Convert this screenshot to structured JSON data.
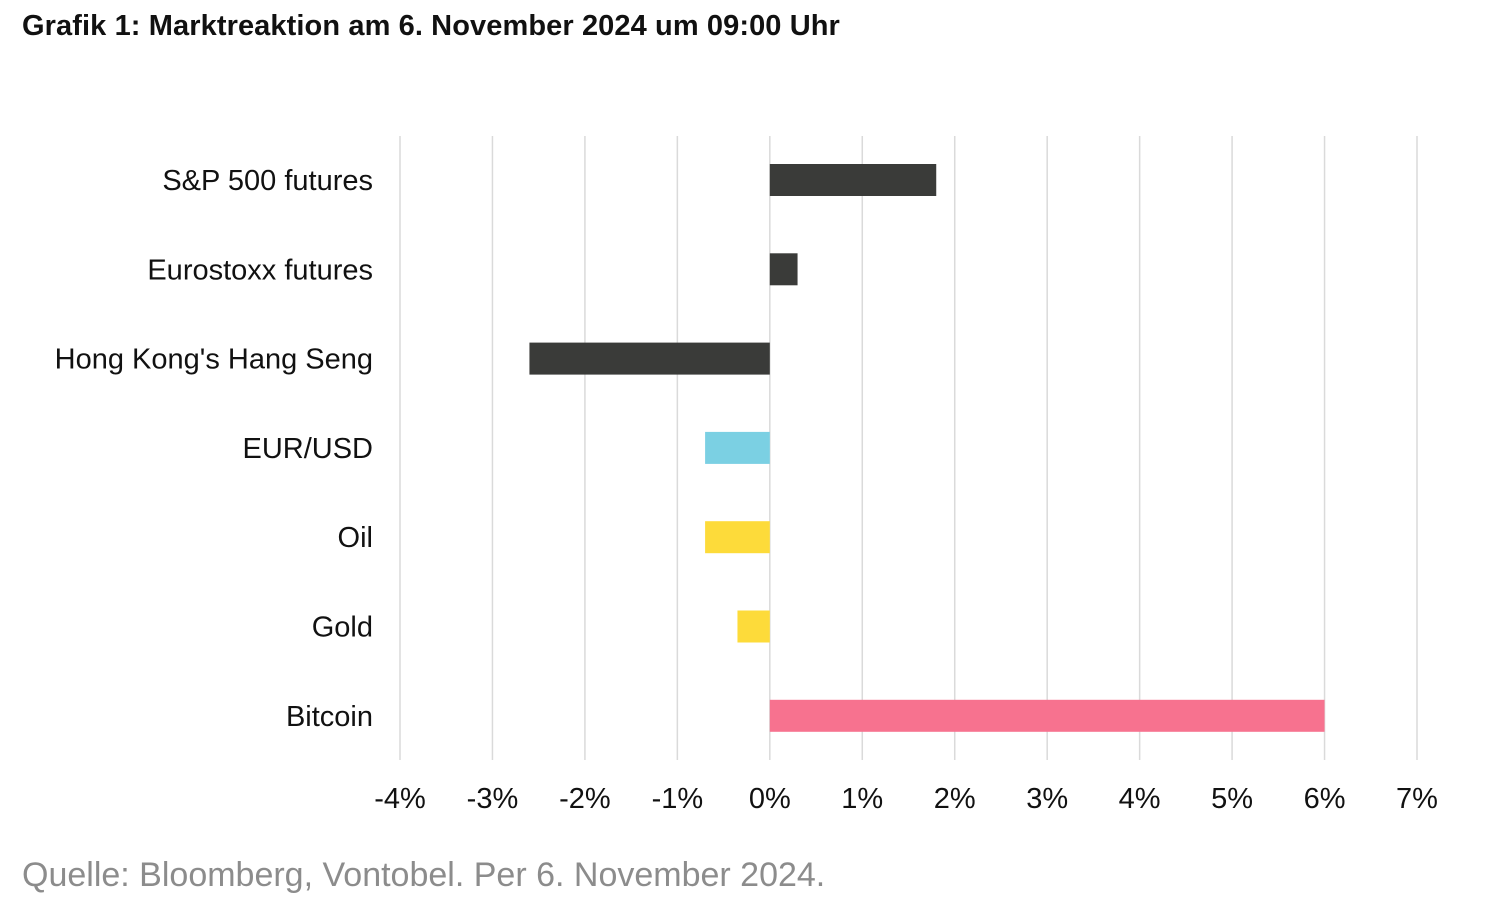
{
  "title": "Grafik 1: Marktreaktion am 6. November 2024 um 09:00 Uhr",
  "source": "Quelle: Bloomberg, Vontobel. Per 6. November 2024.",
  "chart_data": {
    "type": "bar",
    "orientation": "horizontal",
    "title": "",
    "xlabel": "",
    "ylabel": "",
    "categories": [
      "S&P 500 futures",
      "Eurostoxx futures",
      "Hong Kong's Hang Seng",
      "EUR/USD",
      "Oil",
      "Gold",
      "Bitcoin"
    ],
    "values": [
      1.8,
      0.3,
      -2.6,
      -0.7,
      -0.7,
      -0.35,
      6.0
    ],
    "colors": [
      "#3a3b39",
      "#3a3b39",
      "#3a3b39",
      "#7bd0e3",
      "#fddb3a",
      "#fddb3a",
      "#f7728f"
    ],
    "xlim": [
      -4,
      7
    ],
    "xticks": [
      -4,
      -3,
      -2,
      -1,
      0,
      1,
      2,
      3,
      4,
      5,
      6,
      7
    ],
    "xtick_labels": [
      "-4%",
      "-3%",
      "-2%",
      "-1%",
      "0%",
      "1%",
      "2%",
      "3%",
      "4%",
      "5%",
      "6%",
      "7%"
    ],
    "grid": "vertical",
    "legend": "none"
  }
}
